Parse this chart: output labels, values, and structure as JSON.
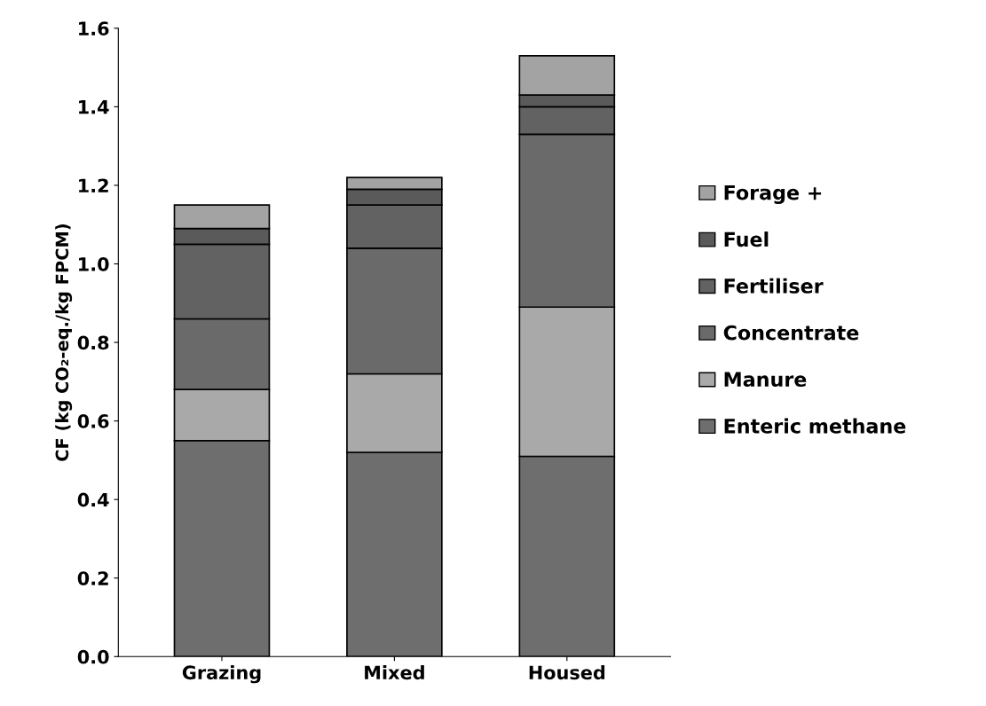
{
  "chart_data": {
    "type": "bar",
    "stacked": true,
    "ylabel": "CF (kg CO₂-eq./kg FPCM)",
    "categories": [
      "Grazing",
      "Mixed",
      "Housed"
    ],
    "series": [
      {
        "name": "Enteric methane",
        "color": "#6e6e6e",
        "values": [
          0.55,
          0.52,
          0.51
        ]
      },
      {
        "name": "Manure",
        "color": "#a9a9a9",
        "values": [
          0.13,
          0.2,
          0.38
        ]
      },
      {
        "name": "Concentrate",
        "color": "#6a6a6a",
        "values": [
          0.18,
          0.32,
          0.44
        ]
      },
      {
        "name": "Fertiliser",
        "color": "#626262",
        "values": [
          0.19,
          0.11,
          0.07
        ]
      },
      {
        "name": "Fuel",
        "color": "#5a5a5a",
        "values": [
          0.04,
          0.04,
          0.03
        ]
      },
      {
        "name": "Forage +",
        "color": "#a3a3a3",
        "values": [
          0.06,
          0.03,
          0.1
        ]
      }
    ],
    "ylim": [
      0,
      1.6
    ],
    "yticks": [
      {
        "value": 0,
        "label": "0.0"
      },
      0.2,
      0.4,
      0.6,
      0.8,
      {
        "value": 1,
        "label": "1.0"
      },
      1.2,
      1.4,
      1.6
    ],
    "grid": false,
    "legend": "right"
  }
}
